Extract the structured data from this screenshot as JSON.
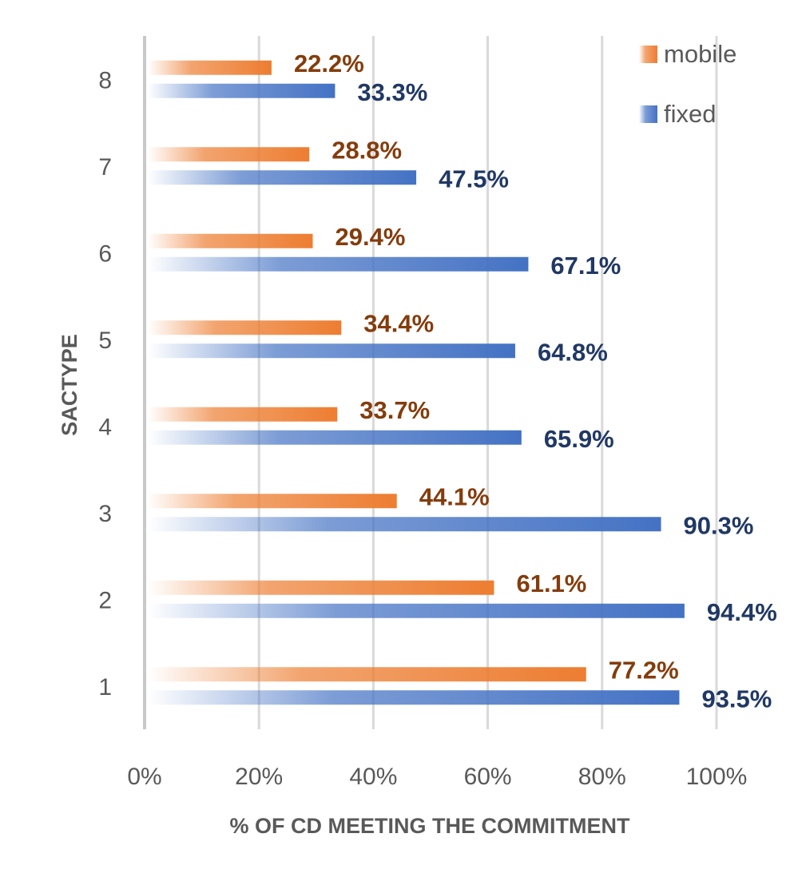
{
  "chart_data": {
    "type": "bar",
    "orientation": "horizontal",
    "categories": [
      "1",
      "2",
      "3",
      "4",
      "5",
      "6",
      "7",
      "8"
    ],
    "series": [
      {
        "name": "mobile",
        "color": "#ED7D31",
        "label_color": "#843C0C",
        "values": [
          77.2,
          61.1,
          44.1,
          33.7,
          34.4,
          29.4,
          28.8,
          22.2
        ],
        "labels": [
          "77.2%",
          "61.1%",
          "44.1%",
          "33.7%",
          "34.4%",
          "29.4%",
          "28.8%",
          "22.2%"
        ]
      },
      {
        "name": "fixed",
        "color": "#4472C4",
        "label_color": "#203864",
        "values": [
          93.5,
          94.4,
          90.3,
          65.9,
          64.8,
          67.1,
          47.5,
          33.3
        ],
        "labels": [
          "93.5%",
          "94.4%",
          "90.3%",
          "65.9%",
          "64.8%",
          "67.1%",
          "47.5%",
          "33.3%"
        ]
      }
    ],
    "xlabel": "% OF CD MEETING THE COMMITMENT",
    "ylabel": "SACTYPE",
    "xlim": [
      0,
      100
    ],
    "xticks": [
      "0%",
      "20%",
      "40%",
      "60%",
      "80%",
      "100%"
    ],
    "grid": true,
    "legend": "top-right"
  }
}
